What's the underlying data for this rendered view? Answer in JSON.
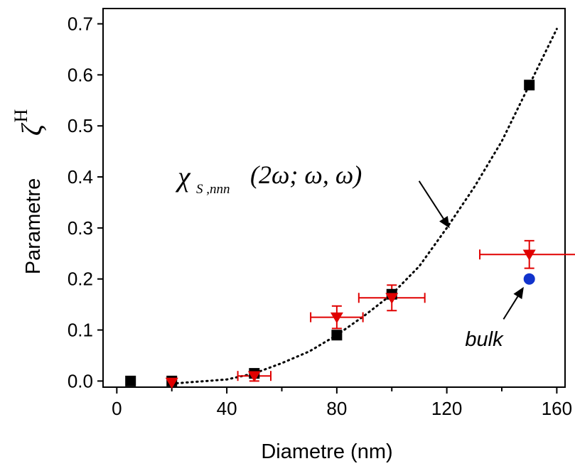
{
  "chart_data": {
    "type": "scatter",
    "title": "",
    "xlabel": "Diametre (nm)",
    "ylabel": "Parametre",
    "ylabel_symbol": "ζ",
    "ylabel_superscript": "H",
    "xlim": [
      -5,
      163
    ],
    "ylim": [
      -0.012,
      0.73
    ],
    "x_ticks": [
      {
        "value": 0,
        "label": "0"
      },
      {
        "value": 40,
        "label": "40"
      },
      {
        "value": 80,
        "label": "80"
      },
      {
        "value": 120,
        "label": "120"
      },
      {
        "value": 160,
        "label": "160"
      }
    ],
    "y_ticks": [
      {
        "value": 0.0,
        "label": "0.0"
      },
      {
        "value": 0.1,
        "label": "0.1"
      },
      {
        "value": 0.2,
        "label": "0.2"
      },
      {
        "value": 0.3,
        "label": "0.3"
      },
      {
        "value": 0.4,
        "label": "0.4"
      },
      {
        "value": 0.5,
        "label": "0.5"
      },
      {
        "value": 0.6,
        "label": "0.6"
      },
      {
        "value": 0.7,
        "label": "0.7"
      }
    ],
    "minor_x_ticks": [
      20,
      60,
      100,
      140
    ],
    "grid": false,
    "series": [
      {
        "marker": "square",
        "color": "#000000",
        "points": [
          {
            "x": 5,
            "y": 0.0
          },
          {
            "x": 20,
            "y": 0.0
          },
          {
            "x": 50,
            "y": 0.015
          },
          {
            "x": 80,
            "y": 0.09
          },
          {
            "x": 100,
            "y": 0.17
          },
          {
            "x": 150,
            "y": 0.58
          }
        ]
      },
      {
        "marker": "triangle-down",
        "color": "#e00000",
        "points": [
          {
            "x": 20,
            "y": -0.003,
            "xerr": 0,
            "yerr": 0
          },
          {
            "x": 50,
            "y": 0.01,
            "xerr": 6,
            "yerr": 0.01
          },
          {
            "x": 80,
            "y": 0.125,
            "xerr": 9.5,
            "yerr": 0.022
          },
          {
            "x": 100,
            "y": 0.163,
            "xerr": 12,
            "yerr": 0.025
          },
          {
            "x": 150,
            "y": 0.248,
            "xerr": 18,
            "yerr": 0.027
          }
        ]
      },
      {
        "marker": "circle",
        "color": "#1133cc",
        "points": [
          {
            "x": 150,
            "y": 0.2
          }
        ]
      }
    ],
    "fit_curve": {
      "style": "dotted",
      "color": "#000000",
      "x_start": 20,
      "x_end": 160,
      "points": [
        {
          "x": 20,
          "y": -0.005
        },
        {
          "x": 40,
          "y": 0.003
        },
        {
          "x": 50,
          "y": 0.015
        },
        {
          "x": 60,
          "y": 0.035
        },
        {
          "x": 70,
          "y": 0.058
        },
        {
          "x": 80,
          "y": 0.09
        },
        {
          "x": 90,
          "y": 0.128
        },
        {
          "x": 100,
          "y": 0.17
        },
        {
          "x": 110,
          "y": 0.225
        },
        {
          "x": 120,
          "y": 0.3
        },
        {
          "x": 130,
          "y": 0.38
        },
        {
          "x": 140,
          "y": 0.47
        },
        {
          "x": 150,
          "y": 0.58
        },
        {
          "x": 155,
          "y": 0.635
        },
        {
          "x": 160,
          "y": 0.69
        }
      ]
    },
    "annotations": [
      {
        "id": "chi",
        "symbol": "χ",
        "subscript": "S ,nnn",
        "args": "(2ω; ω, ω)",
        "arrow_from": {
          "x": 97,
          "y": 0.385
        },
        "arrow_to": {
          "x": 120,
          "y": 0.305
        }
      },
      {
        "id": "bulk",
        "text": "bulk",
        "arrow_from": {
          "x": 137,
          "y": 0.11
        },
        "arrow_to": {
          "x": 148.5,
          "y": 0.19
        }
      }
    ]
  }
}
